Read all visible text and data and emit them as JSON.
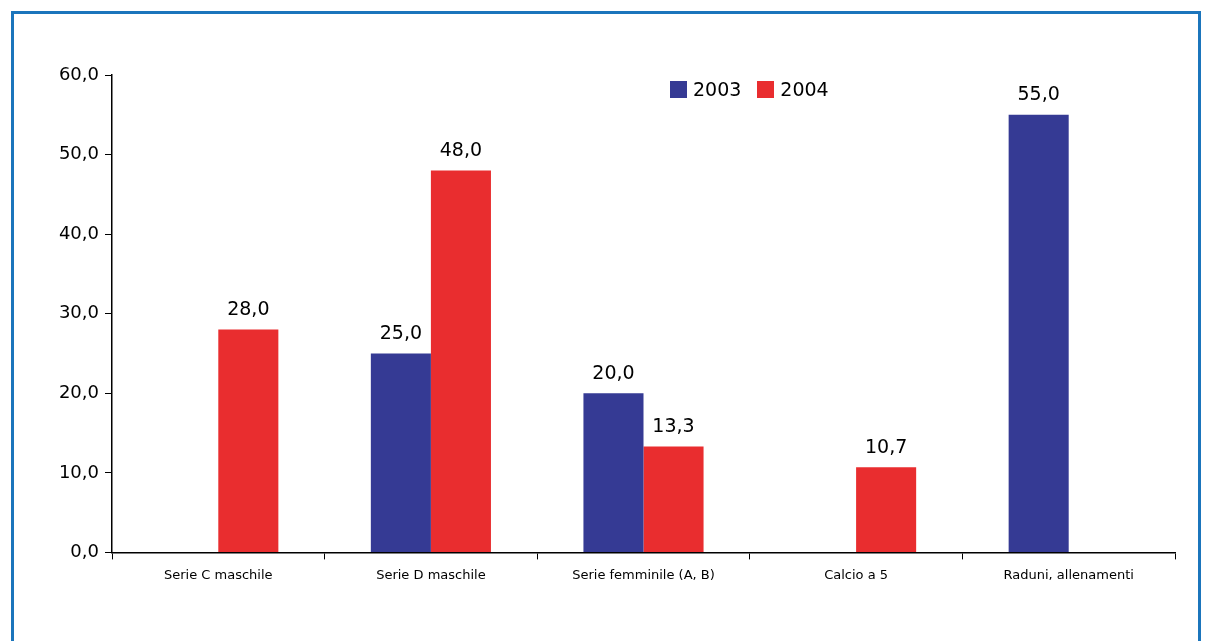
{
  "chart_data": {
    "type": "bar",
    "categories": [
      "Serie C maschile",
      "Serie D maschile",
      "Serie femminile (A, B)",
      "Calcio a 5",
      "Raduni, allenamenti"
    ],
    "series": [
      {
        "name": "2003",
        "color": "#353a94",
        "values": [
          null,
          25,
          20,
          null,
          55
        ],
        "value_labels": [
          null,
          "25,0",
          "20,0",
          null,
          "55,0"
        ]
      },
      {
        "name": "2004",
        "color": "#e92d2f",
        "values": [
          28,
          48,
          13.3,
          10.7,
          null
        ],
        "value_labels": [
          "28,0",
          "48,0",
          "13,3",
          "10,7",
          null
        ]
      }
    ],
    "ylim": [
      0,
      60
    ],
    "yticks": [
      {
        "value": 0,
        "label": "0,0"
      },
      {
        "value": 10,
        "label": "10,0"
      },
      {
        "value": 20,
        "label": "20,0"
      },
      {
        "value": 30,
        "label": "30,0"
      },
      {
        "value": 40,
        "label": "40,0"
      },
      {
        "value": 50,
        "label": "50,0"
      },
      {
        "value": 60,
        "label": "60,0"
      }
    ],
    "grid": false,
    "legend": "top right"
  }
}
